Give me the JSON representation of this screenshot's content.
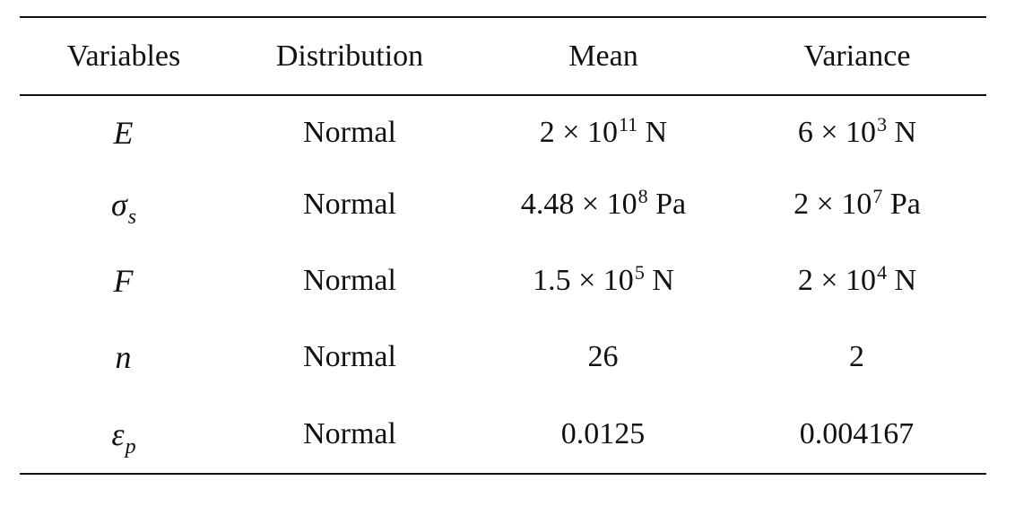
{
  "table": {
    "headers": [
      "Variables",
      "Distribution",
      "Mean",
      "Variance"
    ],
    "rows": [
      {
        "variable": {
          "symbol": "E",
          "subscript": ""
        },
        "distribution": "Normal",
        "mean": {
          "base": "2 × 10",
          "exp": "11",
          "unit": " N"
        },
        "variance": {
          "base": "6 × 10",
          "exp": "3",
          "unit": " N"
        }
      },
      {
        "variable": {
          "symbol": "σ",
          "subscript": "s"
        },
        "distribution": "Normal",
        "mean": {
          "base": "4.48 × 10",
          "exp": "8",
          "unit": " Pa"
        },
        "variance": {
          "base": "2 × 10",
          "exp": "7",
          "unit": " Pa"
        }
      },
      {
        "variable": {
          "symbol": "F",
          "subscript": ""
        },
        "distribution": "Normal",
        "mean": {
          "base": "1.5 × 10",
          "exp": "5",
          "unit": " N"
        },
        "variance": {
          "base": "2 × 10",
          "exp": "4",
          "unit": " N"
        }
      },
      {
        "variable": {
          "symbol": "n",
          "subscript": ""
        },
        "distribution": "Normal",
        "mean": {
          "base": "26",
          "exp": "",
          "unit": ""
        },
        "variance": {
          "base": "2",
          "exp": "",
          "unit": ""
        }
      },
      {
        "variable": {
          "symbol": "ε",
          "subscript": "p"
        },
        "distribution": "Normal",
        "mean": {
          "base": "0.0125",
          "exp": "",
          "unit": ""
        },
        "variance": {
          "base": "0.004167",
          "exp": "",
          "unit": ""
        }
      }
    ]
  }
}
